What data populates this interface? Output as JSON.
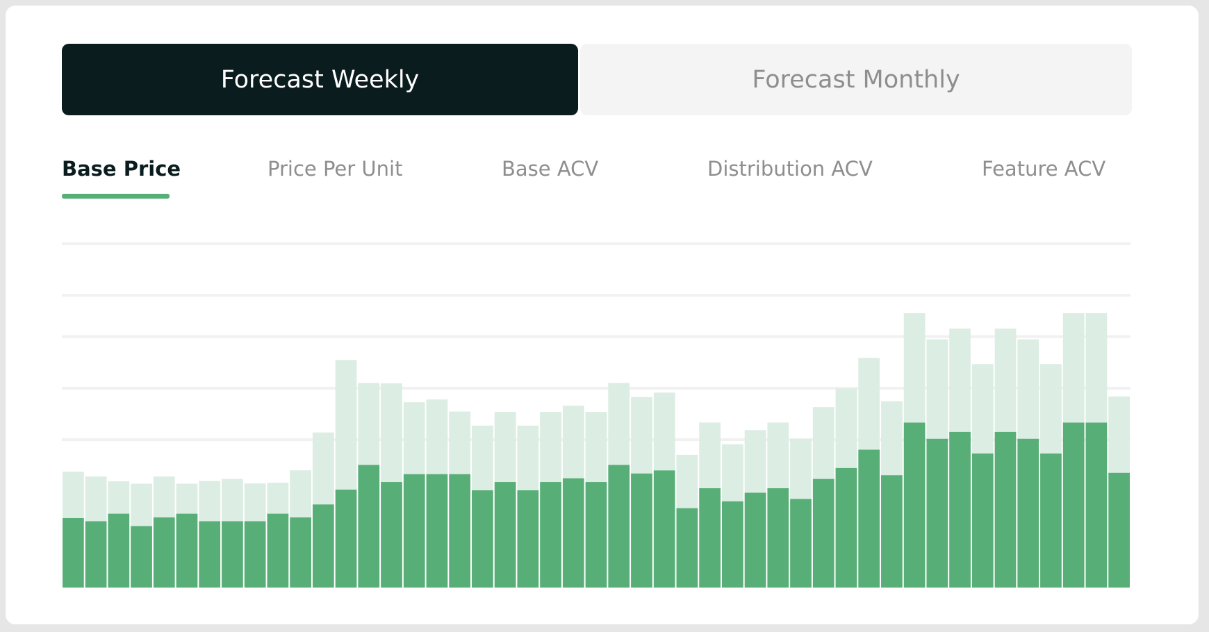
{
  "buttons": [
    "Forecast Weekly",
    "Forecast Monthly"
  ],
  "tabs": [
    "Base Price",
    "Price Per Unit",
    "Base ACV",
    "Distribution ACV",
    "Feature ACV"
  ],
  "chart_data": {
    "type": "stacked-bar",
    "ylim": [
      0,
      100
    ],
    "gridlines": [
      43,
      58,
      73,
      85,
      100
    ],
    "grid": true,
    "series": [
      {
        "color": "#57ae76",
        "values": [
          20.2,
          19.3,
          21.5,
          17.9,
          20.4,
          21.5,
          19.3,
          19.3,
          19.3,
          21.5,
          20.4,
          24.2,
          28.5,
          35.7,
          30.7,
          33,
          33,
          33,
          28.3,
          30.7,
          28.3,
          30.7,
          31.8,
          30.7,
          35.7,
          33.2,
          34.1,
          23.1,
          28.9,
          25.1,
          27.6,
          28.9,
          25.8,
          31.6,
          34.8,
          40.1,
          32.7,
          48,
          43.3,
          45.3,
          39,
          45.3,
          43.3,
          39,
          48,
          48,
          33.4
        ]
      },
      {
        "color": "#dcede3",
        "values": [
          13.5,
          13,
          9.4,
          12.3,
          11.9,
          8.7,
          11.7,
          12.3,
          11,
          9,
          13.7,
          20.9,
          37.7,
          23.8,
          28.7,
          20.9,
          21.7,
          18.2,
          18.8,
          20.4,
          18.8,
          20.4,
          21.1,
          20.4,
          23.8,
          22.2,
          22.6,
          15.5,
          19.1,
          16.6,
          18.2,
          19.1,
          17.5,
          20.9,
          23.1,
          26.7,
          21.5,
          31.8,
          28.9,
          30,
          26,
          30,
          28.9,
          26,
          31.8,
          31.8,
          22.2
        ]
      }
    ]
  }
}
